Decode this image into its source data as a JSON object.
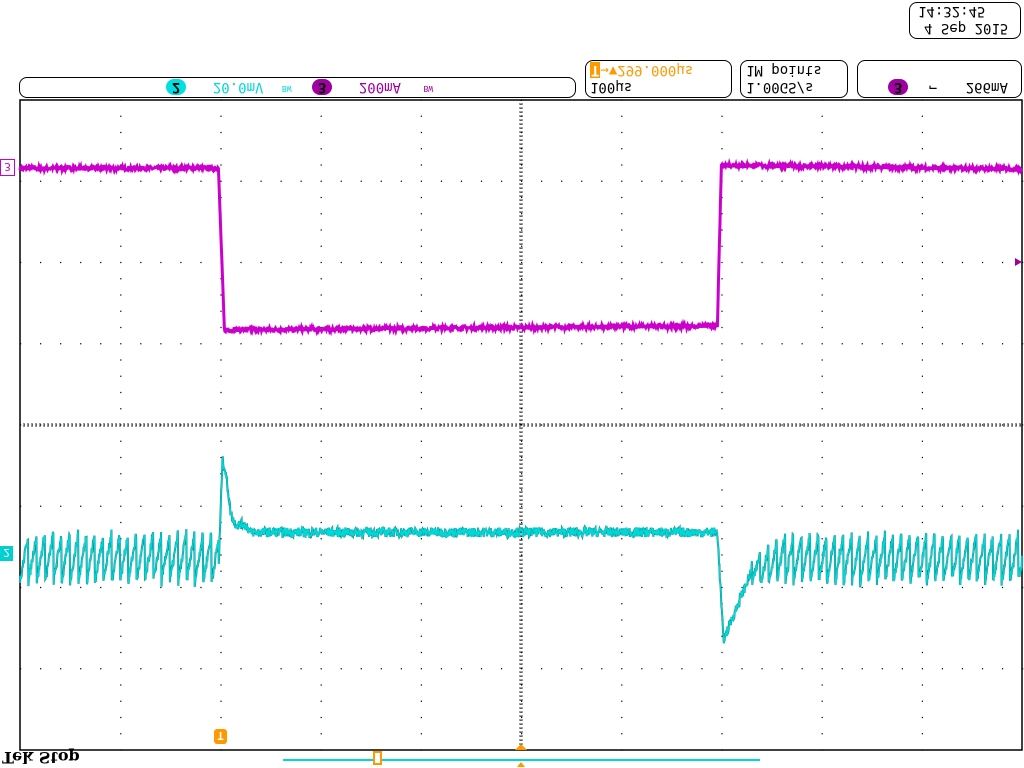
{
  "status": {
    "label": "Tek Stop"
  },
  "datetime": {
    "time": "14:32:45",
    "date": "4 Sep 2015"
  },
  "channels": [
    {
      "number": "2",
      "scale": "20.0mV",
      "bw_icon": "bandwidth-limit-icon",
      "bw": "BW",
      "color": "#00e0e0"
    },
    {
      "number": "3",
      "scale": "200mA",
      "bw_icon": "bandwidth-limit-icon",
      "bw": "BW",
      "color": "#b000b0"
    }
  ],
  "horizontal": {
    "trigger_position": "299.000µs",
    "time_per_div": "100µs"
  },
  "acquisition": {
    "record_length": "1M points",
    "sample_rate": "1.00GS/s"
  },
  "trigger": {
    "source": "3",
    "slope_icon": "falling-edge-icon",
    "slope": "⌐",
    "level": "266mA",
    "color": "#ff9900"
  },
  "markers": {
    "trigger_marker": "T",
    "ch2_marker": "2",
    "ch3_marker": "3"
  },
  "chart_data": {
    "type": "line",
    "title": "",
    "xlabel": "",
    "ylabel": "",
    "x_unit": "µs (100µs/div)",
    "y_unit": "divisions",
    "xlim": [
      -500,
      500
    ],
    "ylim": [
      -4,
      4
    ],
    "grid": true,
    "series": [
      {
        "name": "3",
        "color": "#cc00cc",
        "x": [
          -500,
          -302,
          -296,
          196,
          200,
          500
        ],
        "y": [
          3.16,
          3.16,
          1.17,
          1.22,
          3.2,
          3.15
        ]
      },
      {
        "name": "2",
        "color": "#00d8d8",
        "x": [
          -500,
          -302,
          -298,
          -290,
          -270,
          196,
          202,
          230,
          260,
          500
        ],
        "y": [
          -1.64,
          -1.64,
          -0.43,
          -1.1,
          -1.32,
          -1.32,
          -2.65,
          -1.8,
          -1.65,
          -1.65
        ],
        "ripple_div": 0.3
      }
    ]
  }
}
